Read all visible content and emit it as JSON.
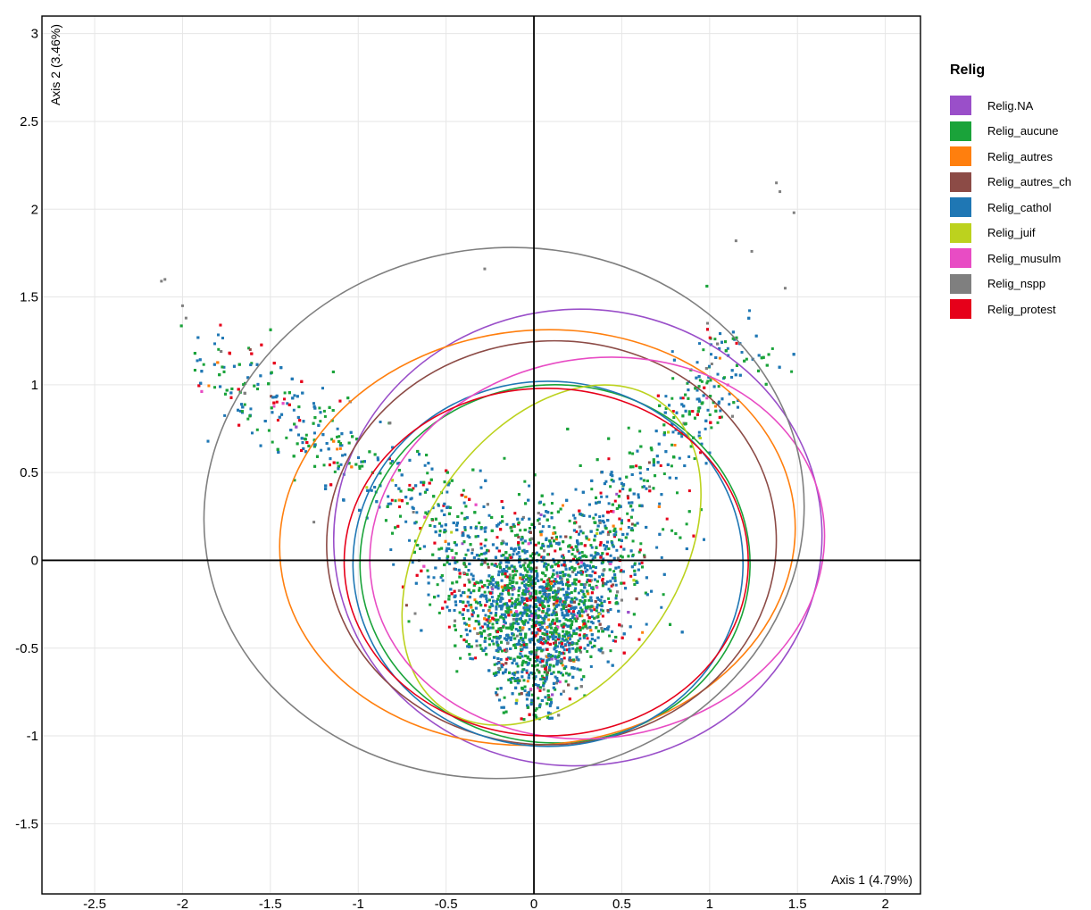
{
  "chart_data": {
    "type": "scatter",
    "xlabel": "Axis 1 (4.79%)",
    "ylabel": "Axis 2 (3.46%)",
    "xlim": [
      -2.8,
      2.2
    ],
    "ylim": [
      -1.9,
      3.1
    ],
    "x_ticks": [
      "-2.5",
      "-2",
      "-1.5",
      "-1",
      "-0.5",
      "0",
      "0.5",
      "1",
      "1.5",
      "2"
    ],
    "y_ticks": [
      "3",
      "2.5",
      "2",
      "1.5",
      "1",
      "0.5",
      "0",
      "-0.5",
      "-1",
      "-1.5"
    ],
    "x_tick_values": [
      -2.5,
      -2,
      -1.5,
      -1,
      -0.5,
      0,
      0.5,
      1,
      1.5,
      2
    ],
    "y_tick_values": [
      3,
      2.5,
      2,
      1.5,
      1,
      0.5,
      0,
      -0.5,
      -1,
      -1.5
    ],
    "grid": true,
    "reference_lines": {
      "x": 0,
      "y": 0
    },
    "legend": {
      "title": "Relig",
      "placement": "right",
      "entries": [
        {
          "name": "Relig.NA",
          "color": "#9a4fc9"
        },
        {
          "name": "Relig_aucune",
          "color": "#1aa33a"
        },
        {
          "name": "Relig_autres",
          "color": "#ff7f0e"
        },
        {
          "name": "Relig_autres_ch",
          "color": "#8c4b46"
        },
        {
          "name": "Relig_cathol",
          "color": "#1f77b4"
        },
        {
          "name": "Relig_juif",
          "color": "#bcd21e"
        },
        {
          "name": "Relig_musulm",
          "color": "#e84cc4"
        },
        {
          "name": "Relig_nspp",
          "color": "#7f7f7f"
        },
        {
          "name": "Relig_protest",
          "color": "#e6001a"
        }
      ]
    },
    "series": [
      {
        "name": "Relig.NA",
        "ellipse": {
          "cx": 0.25,
          "cy": 0.13,
          "rx": 1.39,
          "ry": 1.3,
          "angle": -4
        }
      },
      {
        "name": "Relig_aucune",
        "ellipse": {
          "cx": 0.12,
          "cy": -0.02,
          "rx": 1.11,
          "ry": 1.02,
          "angle": 0
        }
      },
      {
        "name": "Relig_autres",
        "ellipse": {
          "cx": 0.02,
          "cy": 0.13,
          "rx": 1.47,
          "ry": 1.18,
          "angle": -6
        }
      },
      {
        "name": "Relig_autres_ch",
        "ellipse": {
          "cx": 0.1,
          "cy": 0.1,
          "rx": 1.28,
          "ry": 1.15,
          "angle": -3
        }
      },
      {
        "name": "Relig_cathol",
        "ellipse": {
          "cx": 0.08,
          "cy": -0.02,
          "rx": 1.11,
          "ry": 1.04,
          "angle": 0
        }
      },
      {
        "name": "Relig_juif",
        "ellipse": {
          "cx": 0.1,
          "cy": 0.03,
          "rx": 0.72,
          "ry": 1.07,
          "angle": 35
        }
      },
      {
        "name": "Relig_musulm",
        "ellipse": {
          "cx": 0.36,
          "cy": 0.07,
          "rx": 1.3,
          "ry": 1.08,
          "angle": -10
        }
      },
      {
        "name": "Relig_nspp",
        "ellipse": {
          "cx": -0.17,
          "cy": 0.27,
          "rx": 1.71,
          "ry": 1.51,
          "angle": -6
        }
      },
      {
        "name": "Relig_protest",
        "ellipse": {
          "cx": 0.07,
          "cy": -0.01,
          "rx": 1.15,
          "ry": 0.99,
          "angle": 0
        }
      }
    ]
  }
}
